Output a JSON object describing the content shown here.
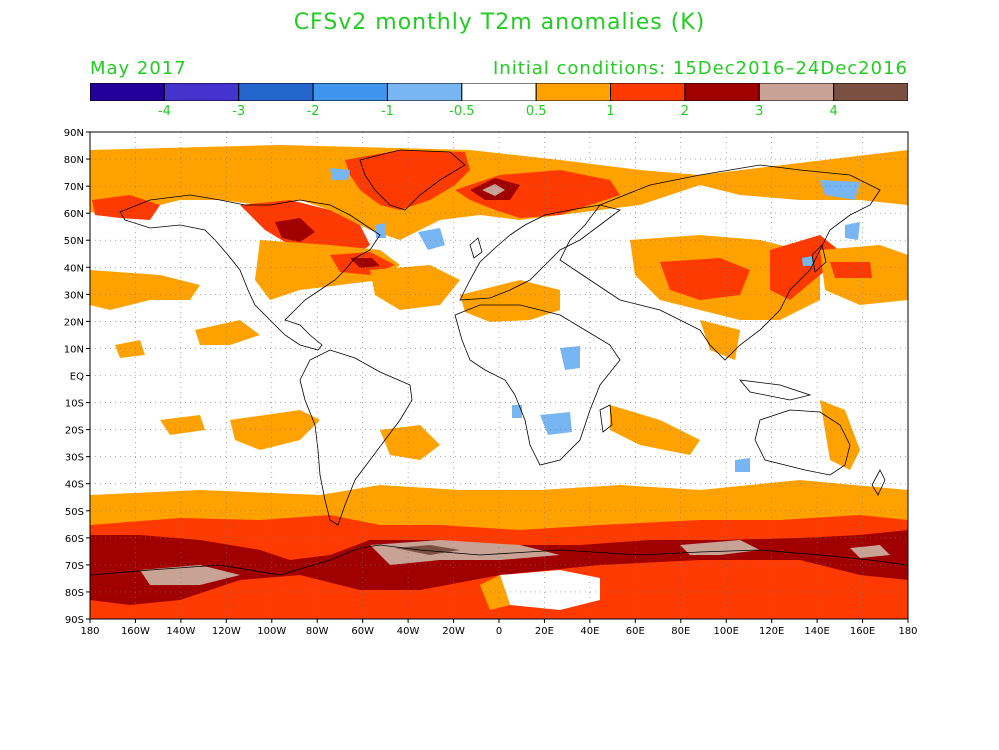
{
  "title": "CFSv2 monthly T2m anomalies (K)",
  "forecast_month": "May 2017",
  "initial_conditions": "Initial conditions: 15Dec2016–24Dec2016",
  "colors": {
    "text": "#22cc22",
    "bins": [
      "#220099",
      "#4433cc",
      "#2266cc",
      "#3f95ee",
      "#77b6f3",
      "#ffffff",
      "#ffa200",
      "#ff3a00",
      "#a00000",
      "#c8a295",
      "#7a5043"
    ]
  },
  "colorbar_labels": [
    "-4",
    "-3",
    "-2",
    "-1",
    "-0.5",
    "0.5",
    "1",
    "2",
    "3",
    "4"
  ],
  "lat_labels": [
    "90N",
    "80N",
    "70N",
    "60N",
    "50N",
    "40N",
    "30N",
    "20N",
    "10N",
    "EQ",
    "10S",
    "20S",
    "30S",
    "40S",
    "50S",
    "60S",
    "70S",
    "80S",
    "90S"
  ],
  "lon_labels": [
    "180",
    "160W",
    "140W",
    "120W",
    "100W",
    "80W",
    "60W",
    "40W",
    "20W",
    "0",
    "20E",
    "40E",
    "60E",
    "80E",
    "100E",
    "120E",
    "140E",
    "160E",
    "180"
  ]
}
